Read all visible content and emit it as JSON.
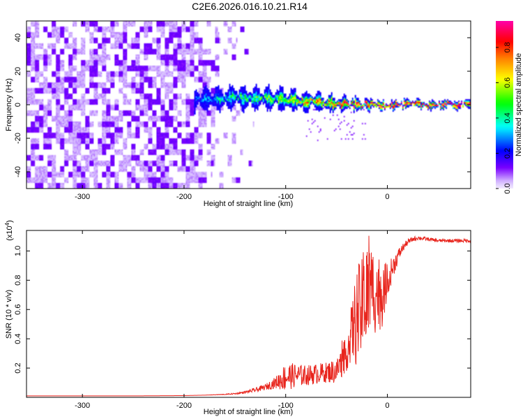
{
  "title": "C2E6.2026.016.10.21.R14",
  "chart_data": [
    {
      "type": "heatmap",
      "xlabel": "Height of straight line (km)",
      "ylabel": "Frequency (Hz)",
      "xlim": [
        -355,
        82
      ],
      "ylim": [
        -50,
        50
      ],
      "xticks": [
        -300,
        -200,
        -100,
        0
      ],
      "yticks": [
        -40,
        -20,
        0,
        20,
        40
      ],
      "grid": false,
      "colorbar": {
        "label": "Normalized spectral amplitude",
        "range": [
          0,
          0.95
        ],
        "ticks": [
          0.0,
          0.2,
          0.4,
          0.6,
          0.8
        ],
        "colormap": [
          "#ffffff",
          "#7a00ff",
          "#0000ff",
          "#00ffff",
          "#00ff00",
          "#ffff00",
          "#ff7f00",
          "#ff0000",
          "#ff00aa"
        ]
      },
      "ridge": {
        "description_points_x": [
          -185,
          -150,
          -120,
          -100,
          -80,
          -60,
          -40,
          -20,
          0,
          20,
          40,
          60,
          82
        ],
        "center_hz": [
          3,
          4,
          4,
          3,
          2,
          1,
          0,
          0,
          0,
          0,
          0,
          0,
          0
        ],
        "halfwidth_hz": [
          4,
          4,
          4,
          4,
          3.5,
          3,
          2.5,
          2,
          1.5,
          1.5,
          1.5,
          1.5,
          1.5
        ],
        "peak_amplitude": [
          0.3,
          0.45,
          0.5,
          0.6,
          0.7,
          0.75,
          0.85,
          0.9,
          0.95,
          0.95,
          0.95,
          0.95,
          0.95
        ]
      },
      "noise_extent_x": [
        -355,
        -130
      ]
    },
    {
      "type": "line",
      "xlabel": "Height of straight line (km)",
      "ylabel": "SNR (10 * v/v)",
      "yscale_label": "(x10^4)",
      "xlim": [
        -355,
        82
      ],
      "ylim": [
        0,
        1.14
      ],
      "xticks": [
        -300,
        -200,
        -100,
        0
      ],
      "yticks": [
        0.2,
        0.4,
        0.6,
        0.8,
        1.0
      ],
      "grid": false,
      "color": "#e8241c",
      "series": [
        {
          "x": [
            -355,
            -300,
            -250,
            -200,
            -180,
            -160,
            -150,
            -140,
            -130,
            -120,
            -110,
            -100,
            -90,
            -80,
            -70,
            -60,
            -50,
            -40,
            -35,
            -30,
            -25,
            -20,
            -15,
            -10,
            -5,
            0,
            5,
            10,
            15,
            20,
            25,
            30,
            40,
            50,
            60,
            70,
            82
          ],
          "values": [
            0.01,
            0.01,
            0.01,
            0.012,
            0.015,
            0.02,
            0.025,
            0.035,
            0.05,
            0.07,
            0.1,
            0.14,
            0.15,
            0.15,
            0.16,
            0.17,
            0.18,
            0.3,
            0.45,
            0.55,
            0.6,
            0.7,
            0.75,
            0.72,
            0.7,
            0.8,
            0.88,
            0.96,
            1.02,
            1.06,
            1.08,
            1.09,
            1.08,
            1.07,
            1.07,
            1.07,
            1.07
          ],
          "noise_amplitude": [
            0.0,
            0.0,
            0.0,
            0.0,
            0.0,
            0.003,
            0.005,
            0.008,
            0.015,
            0.02,
            0.04,
            0.1,
            0.08,
            0.07,
            0.07,
            0.07,
            0.09,
            0.12,
            0.2,
            0.35,
            0.35,
            0.38,
            0.3,
            0.3,
            0.22,
            0.12,
            0.08,
            0.05,
            0.03,
            0.02,
            0.015,
            0.015,
            0.012,
            0.012,
            0.012,
            0.012,
            0.012
          ]
        }
      ]
    }
  ]
}
